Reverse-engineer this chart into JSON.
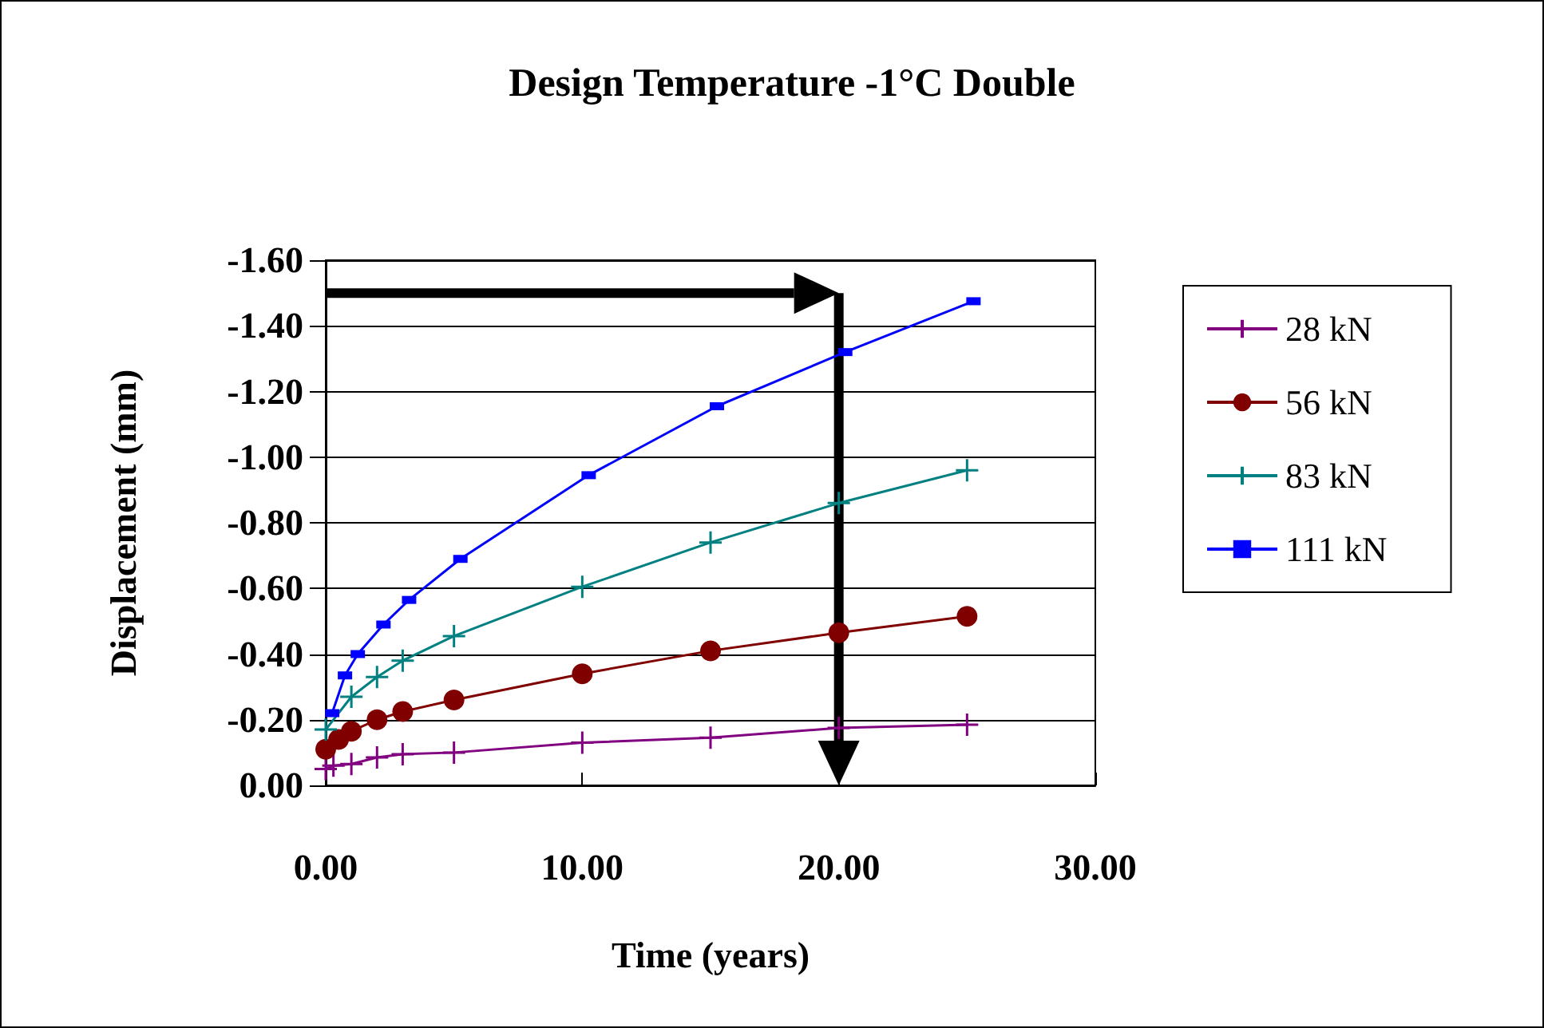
{
  "chart_data": {
    "type": "line",
    "title": "Design Temperature -1°C Double",
    "xlabel": "Time (years)",
    "ylabel": "Displacement (mm)",
    "xlim": [
      0,
      30
    ],
    "xticks": [
      {
        "value": 0,
        "label": "0.00"
      },
      {
        "value": 10,
        "label": "10.00"
      },
      {
        "value": 20,
        "label": "20.00"
      },
      {
        "value": 30,
        "label": "30.00"
      }
    ],
    "ylim": [
      0,
      -1.6
    ],
    "yticks": [
      {
        "value": 0,
        "label": "0.00"
      },
      {
        "value": -0.2,
        "label": "-0.20"
      },
      {
        "value": -0.4,
        "label": "-0.40"
      },
      {
        "value": -0.6,
        "label": "-0.60"
      },
      {
        "value": -0.8,
        "label": "-0.80"
      },
      {
        "value": -1.0,
        "label": "-1.00"
      },
      {
        "value": -1.2,
        "label": "-1.20"
      },
      {
        "value": -1.4,
        "label": "-1.40"
      },
      {
        "value": -1.6,
        "label": "-1.60"
      }
    ],
    "grid": "y",
    "legend": "right",
    "line_style": "solid",
    "series": [
      {
        "name": "28 kN",
        "color": "#800080",
        "marker": "cross",
        "x": [
          0,
          0.3,
          1,
          2,
          3,
          5,
          10,
          15,
          20,
          25
        ],
        "values": [
          -0.05,
          -0.06,
          -0.065,
          -0.085,
          -0.095,
          -0.1,
          -0.13,
          -0.145,
          -0.175,
          -0.185
        ]
      },
      {
        "name": "56 kN",
        "color": "#800000",
        "marker": "circle",
        "x": [
          0,
          0.5,
          1,
          2,
          3,
          5,
          10,
          15,
          20,
          25
        ],
        "values": [
          -0.11,
          -0.14,
          -0.165,
          -0.2,
          -0.225,
          -0.26,
          -0.34,
          -0.41,
          -0.465,
          -0.515
        ]
      },
      {
        "name": "83 kN",
        "color": "#008080",
        "marker": "cross",
        "x": [
          0,
          1,
          2,
          3,
          5,
          10,
          15,
          20,
          25
        ],
        "values": [
          -0.17,
          -0.27,
          -0.33,
          -0.38,
          -0.455,
          -0.605,
          -0.74,
          -0.86,
          -0.96
        ]
      },
      {
        "name": "111 kN",
        "color": "#0000ff",
        "marker": "square",
        "x": [
          0.25,
          0.75,
          1.25,
          2.25,
          3.25,
          5.25,
          10.25,
          15.25,
          20.25,
          25.25
        ],
        "values": [
          -0.22,
          -0.335,
          -0.4,
          -0.49,
          -0.565,
          -0.69,
          -0.945,
          -1.155,
          -1.32,
          -1.475
        ]
      }
    ],
    "ref_lines": [
      {
        "axis": "y",
        "value": -1.5,
        "color": "#000000",
        "line_style": "solid"
      },
      {
        "axis": "x",
        "value": 20,
        "color": "#000000",
        "line_style": "solid"
      }
    ]
  }
}
